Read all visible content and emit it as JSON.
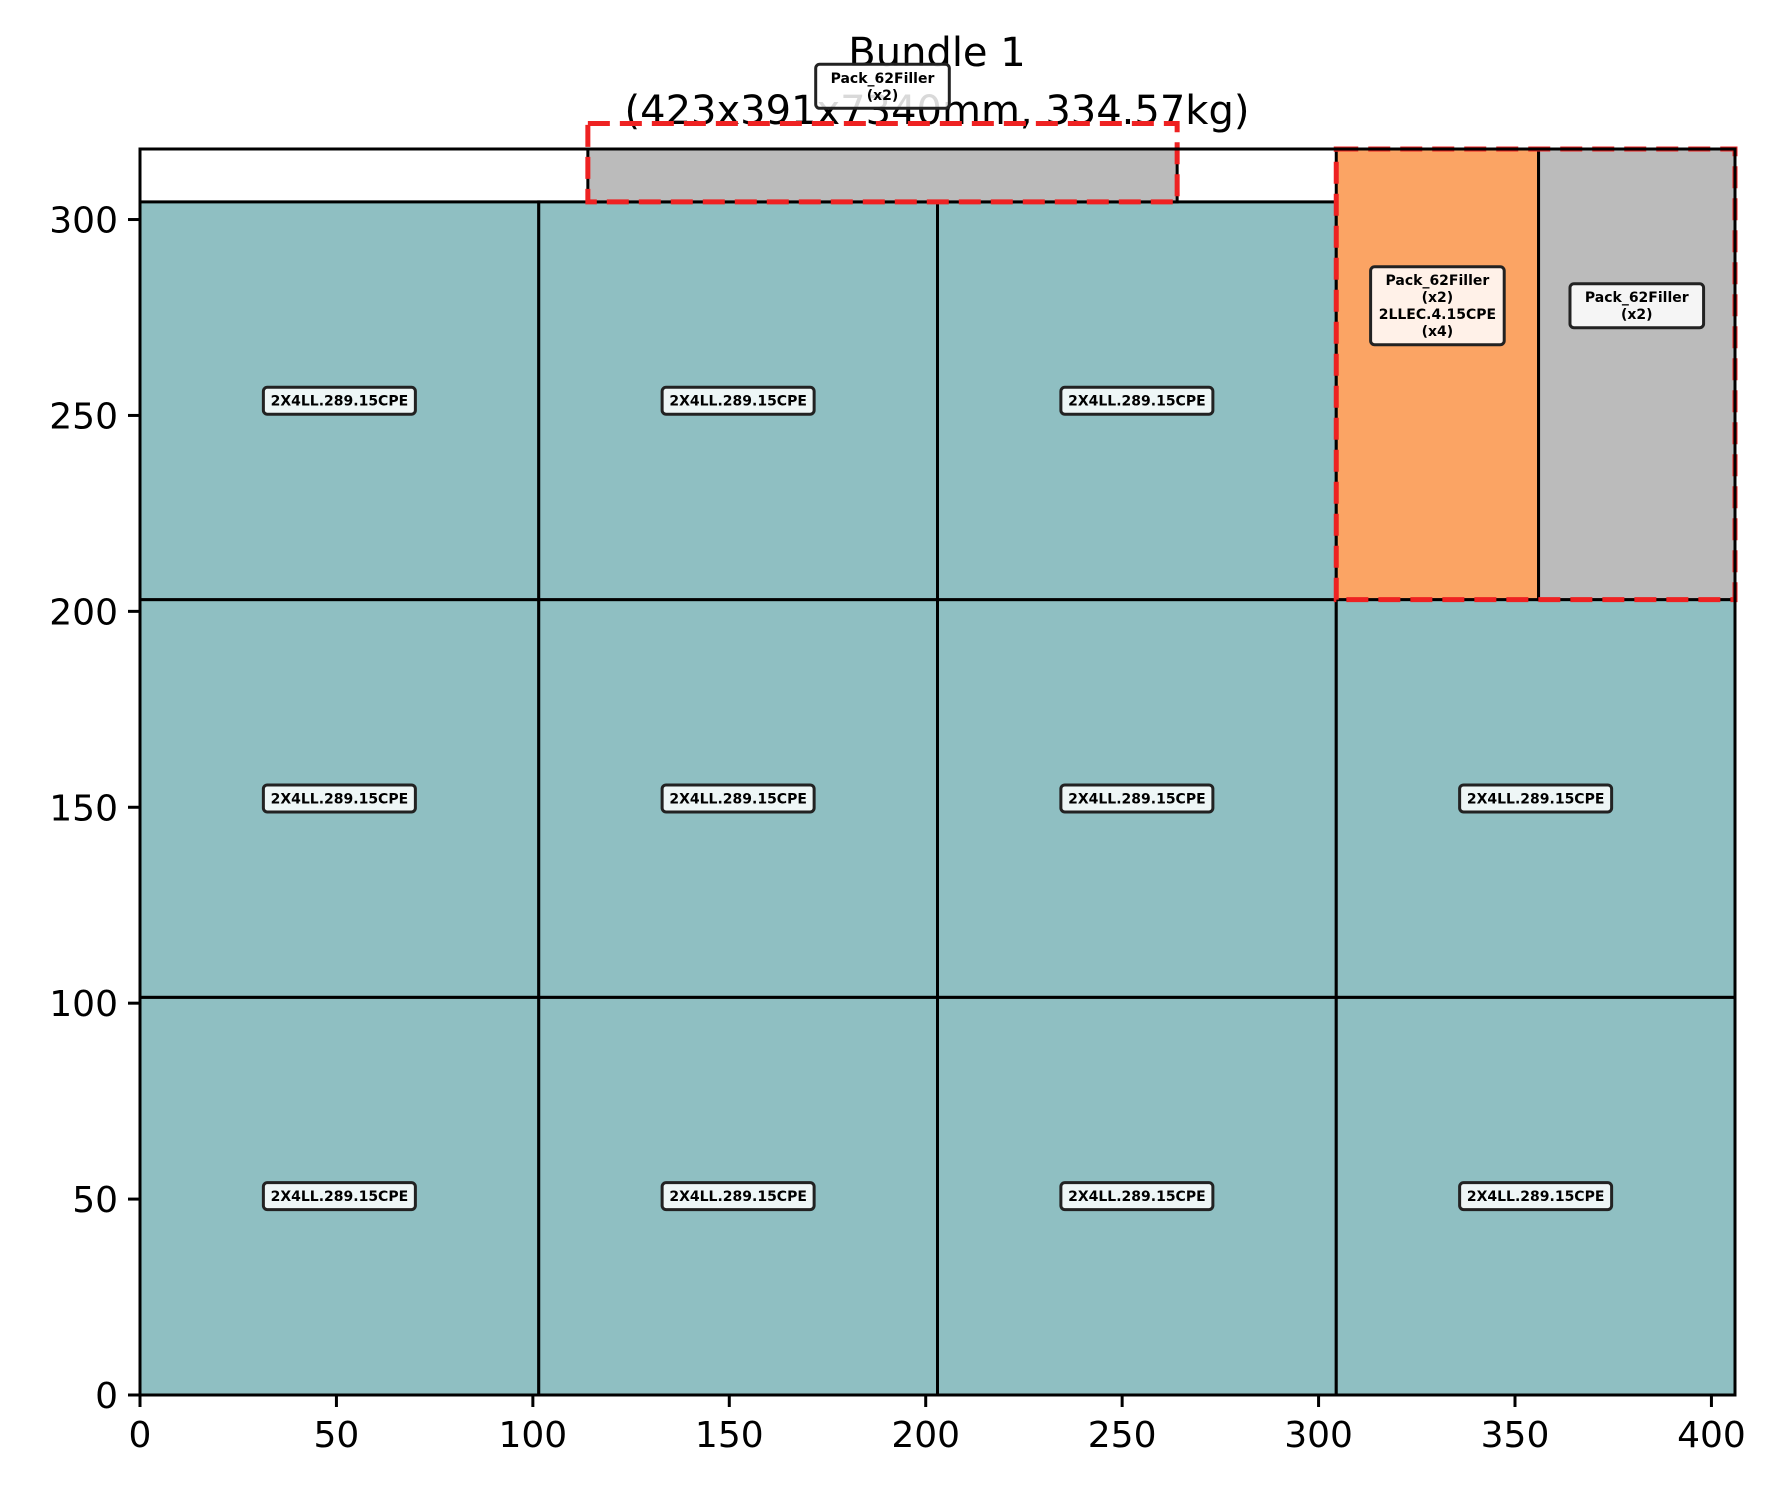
{
  "chart_data": {
    "type": "rect-layout",
    "title": "Bundle 1",
    "subtitle": "(423x391x7340mm, 334.57kg)",
    "xlim": [
      0,
      406
    ],
    "ylim": [
      0,
      318
    ],
    "x_ticks": [
      0,
      50,
      100,
      150,
      200,
      250,
      300,
      350,
      400
    ],
    "y_ticks": [
      0,
      50,
      100,
      150,
      200,
      250,
      300
    ],
    "grid": false,
    "colors": {
      "teal": "#8fbfc2",
      "orange": "#fba464",
      "gray": "#bbbbbb",
      "dashed_outline": "#ee2222"
    },
    "rects": [
      {
        "x": 0,
        "y": 0,
        "w": 101.5,
        "h": 101.5,
        "color": "teal",
        "label": "2X4LL.289.15CPE"
      },
      {
        "x": 101.5,
        "y": 0,
        "w": 101.5,
        "h": 101.5,
        "color": "teal",
        "label": "2X4LL.289.15CPE"
      },
      {
        "x": 203,
        "y": 0,
        "w": 101.5,
        "h": 101.5,
        "color": "teal",
        "label": "2X4LL.289.15CPE"
      },
      {
        "x": 304.5,
        "y": 0,
        "w": 101.5,
        "h": 101.5,
        "color": "teal",
        "label": "2X4LL.289.15CPE"
      },
      {
        "x": 0,
        "y": 101.5,
        "w": 101.5,
        "h": 101.5,
        "color": "teal",
        "label": "2X4LL.289.15CPE"
      },
      {
        "x": 101.5,
        "y": 101.5,
        "w": 101.5,
        "h": 101.5,
        "color": "teal",
        "label": "2X4LL.289.15CPE"
      },
      {
        "x": 203,
        "y": 101.5,
        "w": 101.5,
        "h": 101.5,
        "color": "teal",
        "label": "2X4LL.289.15CPE"
      },
      {
        "x": 304.5,
        "y": 101.5,
        "w": 101.5,
        "h": 101.5,
        "color": "teal",
        "label": "2X4LL.289.15CPE"
      },
      {
        "x": 0,
        "y": 203,
        "w": 101.5,
        "h": 101.5,
        "color": "teal",
        "label": "2X4LL.289.15CPE"
      },
      {
        "x": 101.5,
        "y": 203,
        "w": 101.5,
        "h": 101.5,
        "color": "teal",
        "label": "2X4LL.289.15CPE"
      },
      {
        "x": 203,
        "y": 203,
        "w": 101.5,
        "h": 101.5,
        "color": "teal",
        "label": "2X4LL.289.15CPE"
      },
      {
        "x": 304.5,
        "y": 203,
        "w": 51.5,
        "h": 115,
        "color": "orange",
        "label": "Pack_62Filler\n(x2)\n2LLEC.4.15CPE\n(x4)",
        "label_y": 278
      },
      {
        "x": 356,
        "y": 203,
        "w": 50,
        "h": 115,
        "color": "gray",
        "label": "Pack_62Filler\n(x2)",
        "label_y": 278
      },
      {
        "x": 114,
        "y": 304.5,
        "w": 150,
        "h": 20,
        "color": "gray",
        "label": "Pack_62Filler\n(x2)",
        "label_y": 334
      }
    ],
    "dashed_regions": [
      {
        "x": 114,
        "y": 304.5,
        "w": 150,
        "h": 20
      },
      {
        "x": 304.5,
        "y": 203,
        "w": 101.5,
        "h": 115
      }
    ]
  }
}
